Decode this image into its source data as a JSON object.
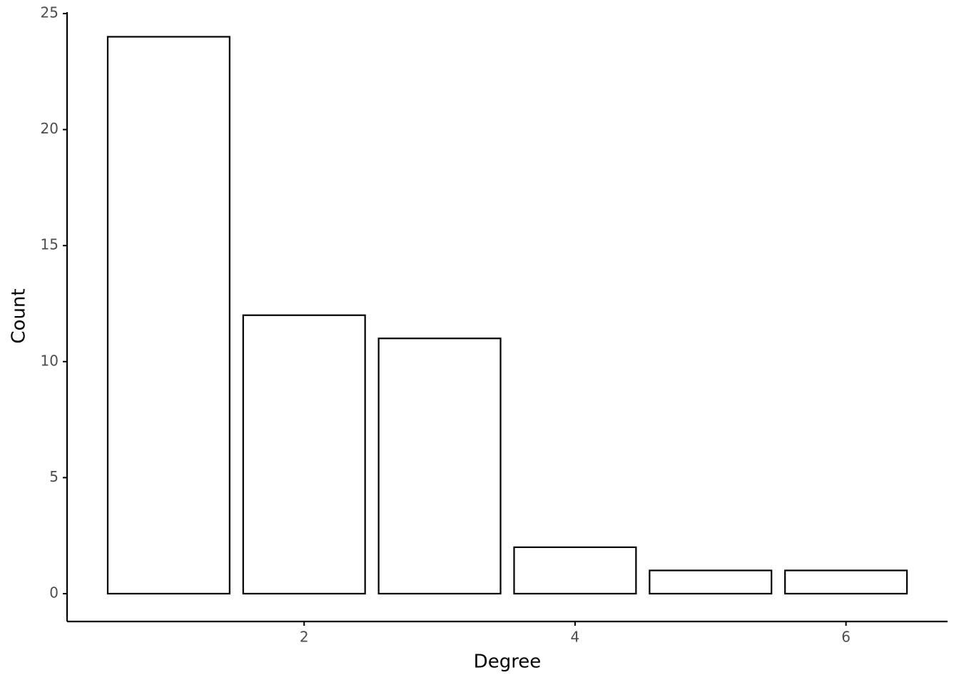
{
  "chart_data": {
    "type": "bar",
    "x_label": "Degree",
    "y_label": "Count",
    "x": [
      1,
      2,
      3,
      4,
      5,
      6
    ],
    "values": [
      24,
      12,
      11,
      2,
      1,
      1
    ],
    "color": "#ffffff",
    "edge_color": "#000000",
    "xlim": [
      0.25,
      6.75
    ],
    "xticks": [
      2,
      4,
      6
    ],
    "ylim": [
      -1.2,
      25
    ],
    "yticks": [
      0,
      5,
      10,
      15,
      20,
      25
    ],
    "grid": false
  }
}
